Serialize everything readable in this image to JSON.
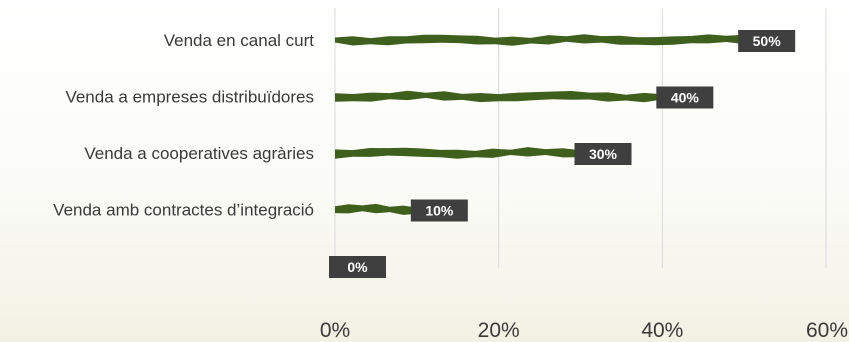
{
  "chart_data": {
    "type": "bar",
    "orientation": "horizontal",
    "categories": [
      "Venda en canal curt",
      "Venda a empreses distribuïdores",
      "Venda a cooperatives agràries",
      "Venda amb contractes d’integració",
      ""
    ],
    "values": [
      50,
      40,
      30,
      10,
      0
    ],
    "data_labels": [
      "50%",
      "40%",
      "30%",
      "10%",
      "0%"
    ],
    "x_ticks": [
      "0%",
      "20%",
      "40%",
      "60%"
    ],
    "xlim": [
      0,
      60
    ],
    "grid": true,
    "bar_color": "#3f5f1c",
    "label_bg_color": "#3f3f3f",
    "title": "",
    "xlabel": "",
    "ylabel": ""
  }
}
